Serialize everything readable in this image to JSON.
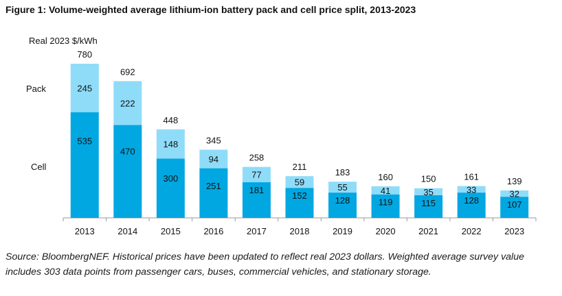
{
  "figure_title": "Figure 1: Volume-weighted average lithium-ion battery pack and cell price split, 2013-2023",
  "source_note": "Source: BloombergNEF. Historical prices have been updated to reflect real 2023 dollars. Weighted average survey value includes 303 data points from passenger cars, buses, commercial vehicles, and stationary storage.",
  "colors": {
    "cell": "#00a7e1",
    "pack": "#8fdcf9",
    "axis": "#9a9a9a"
  },
  "chart_data": {
    "type": "bar",
    "stacked": true,
    "ylabel": "Real 2023 $/kWh",
    "categories": [
      "2013",
      "2014",
      "2015",
      "2016",
      "2017",
      "2018",
      "2019",
      "2020",
      "2021",
      "2022",
      "2023"
    ],
    "series": [
      {
        "name": "Cell",
        "values": [
          535,
          470,
          300,
          251,
          181,
          152,
          128,
          119,
          115,
          128,
          107
        ]
      },
      {
        "name": "Pack",
        "values": [
          245,
          222,
          148,
          94,
          77,
          59,
          55,
          41,
          35,
          33,
          32
        ]
      }
    ],
    "totals": [
      780,
      692,
      448,
      345,
      258,
      211,
      183,
      160,
      150,
      161,
      139
    ],
    "ylim": [
      0,
      780
    ],
    "grid": false,
    "legend": "inline-left"
  }
}
